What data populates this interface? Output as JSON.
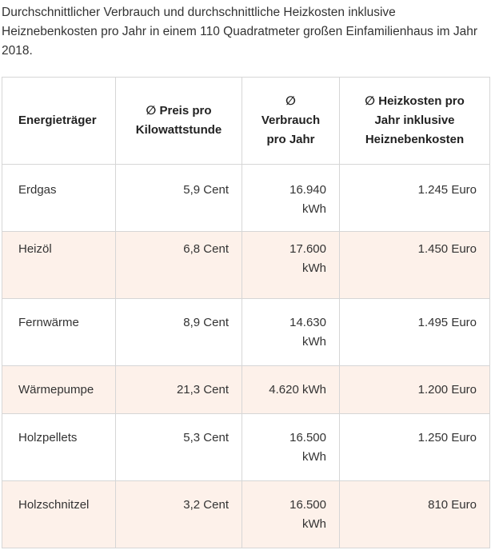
{
  "caption": "Durchschnittlicher Verbrauch und durchschnittliche Heizkosten inklusive Heiznebenkosten pro Jahr in einem 110 Quadratmeter großen Einfamilienhaus im Jahr 2018.",
  "table": {
    "headers": [
      "Energieträger",
      "∅ Preis pro Kilowattstunde",
      "∅ Verbrauch pro Jahr",
      "∅ Heizkosten pro Jahr inklusive Heiznebenkosten"
    ],
    "rows": [
      {
        "name": "Erdgas",
        "price": "5,9 Cent",
        "consumption": "16.940 kWh",
        "cost": "1.245 Euro"
      },
      {
        "name": "Heizöl",
        "price": "6,8 Cent",
        "consumption": "17.600 kWh",
        "cost": "1.450 Euro"
      },
      {
        "name": "Fernwärme",
        "price": "8,9 Cent",
        "consumption": "14.630 kWh",
        "cost": "1.495 Euro"
      },
      {
        "name": "Wärmepumpe",
        "price": "21,3 Cent",
        "consumption": "4.620 kWh",
        "cost": "1.200 Euro"
      },
      {
        "name": "Holzpellets",
        "price": "5,3 Cent",
        "consumption": "16.500 kWh",
        "cost": "1.250 Euro"
      },
      {
        "name": "Holzschnitzel",
        "price": "3,2 Cent",
        "consumption": "16.500 kWh",
        "cost": "810 Euro"
      }
    ]
  },
  "colors": {
    "shaded_row": "#fdf1ea",
    "border": "#d6d6d6"
  }
}
